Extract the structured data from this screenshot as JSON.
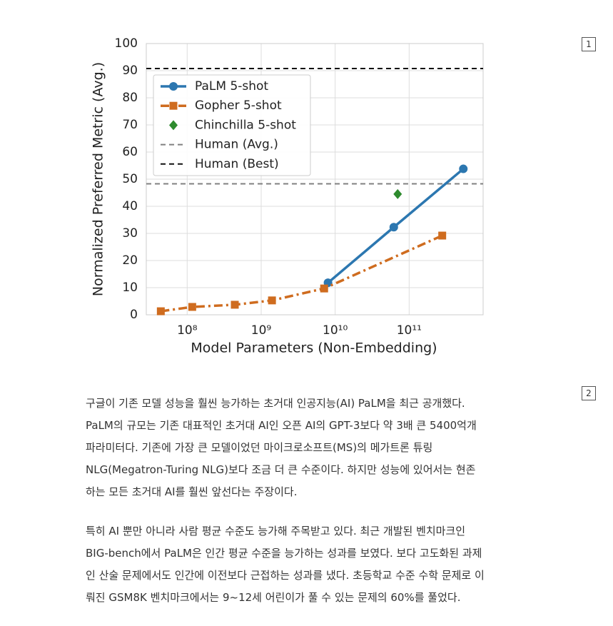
{
  "chart_data": {
    "type": "line",
    "xlabel": "Model Parameters (Non-Embedding)",
    "ylabel": "Normalized Preferred Metric (Avg.)",
    "xscale": "log",
    "grid": true,
    "legend": "upper left",
    "xlim": [
      28000000,
      1000000000000
    ],
    "ylim": [
      0,
      100
    ],
    "xticks": [
      {
        "value": 100000000,
        "label": "10⁸"
      },
      {
        "value": 1000000000,
        "label": "10⁹"
      },
      {
        "value": 10000000000,
        "label": "10¹⁰"
      },
      {
        "value": 100000000000,
        "label": "10¹¹"
      }
    ],
    "yticks": [
      0,
      10,
      20,
      30,
      40,
      50,
      60,
      70,
      80,
      90,
      100
    ],
    "series": [
      {
        "name": "PaLM 5-shot",
        "color": "#2c77b0",
        "marker": "circle",
        "linestyle": "solid",
        "x": [
          8000000000,
          62000000000,
          540000000000
        ],
        "values": [
          11.8,
          32.3,
          53.8
        ]
      },
      {
        "name": "Gopher 5-shot",
        "color": "#cf6c1f",
        "marker": "square",
        "linestyle": "dashdot",
        "x": [
          44000000,
          117000000,
          440000000,
          1400000000,
          7100000000,
          280000000000
        ],
        "values": [
          1.3,
          2.9,
          3.7,
          5.3,
          9.7,
          29.2
        ]
      },
      {
        "name": "Chinchilla 5-shot",
        "color": "#2e8b2e",
        "marker": "diamond",
        "linestyle": "none",
        "x": [
          70000000000
        ],
        "values": [
          44.5
        ]
      }
    ],
    "hlines": [
      {
        "name": "Human (Avg.)",
        "color": "#808080",
        "value": 48.3
      },
      {
        "name": "Human (Best)",
        "color": "#111111",
        "value": 90.8
      }
    ]
  },
  "markers": [
    "1",
    "2"
  ],
  "article": {
    "paragraphs": [
      [
        "구글이 기존 모델 성능을 훨씬 능가하는 초거대 인공지능(AI) PaLM을 최근 공개했다.",
        "PaLM의 규모는 기존 대표적인 초거대 AI인 오픈 AI의 GPT-3보다 약 3배 큰 5400억개",
        "파라미터다. 기존에 가장 큰 모델이었던 마이크로소프트(MS)의 메가트론 튜링",
        "NLG(Megatron-Turing NLG)보다 조금 더 큰 수준이다. 하지만 성능에 있어서는 현존",
        "하는 모든 초거대 AI를 훨씬 앞선다는 주장이다."
      ],
      [
        "특히 AI 뿐만 아니라 사람 평균 수준도 능가해 주목받고 있다. 최근 개발된 벤치마크인",
        "BIG-bench에서 PaLM은 인간 평균 수준을 능가하는 성과를 보였다. 보다 고도화된 과제",
        "인 산술 문제에서도 인간에 이전보다 근접하는 성과를 냈다. 초등학교 수준 수학 문제로 이",
        "뤄진 GSM8K 벤치마크에서는 9~12세 어린이가 풀 수 있는 문제의 60%를 풀었다."
      ]
    ]
  }
}
